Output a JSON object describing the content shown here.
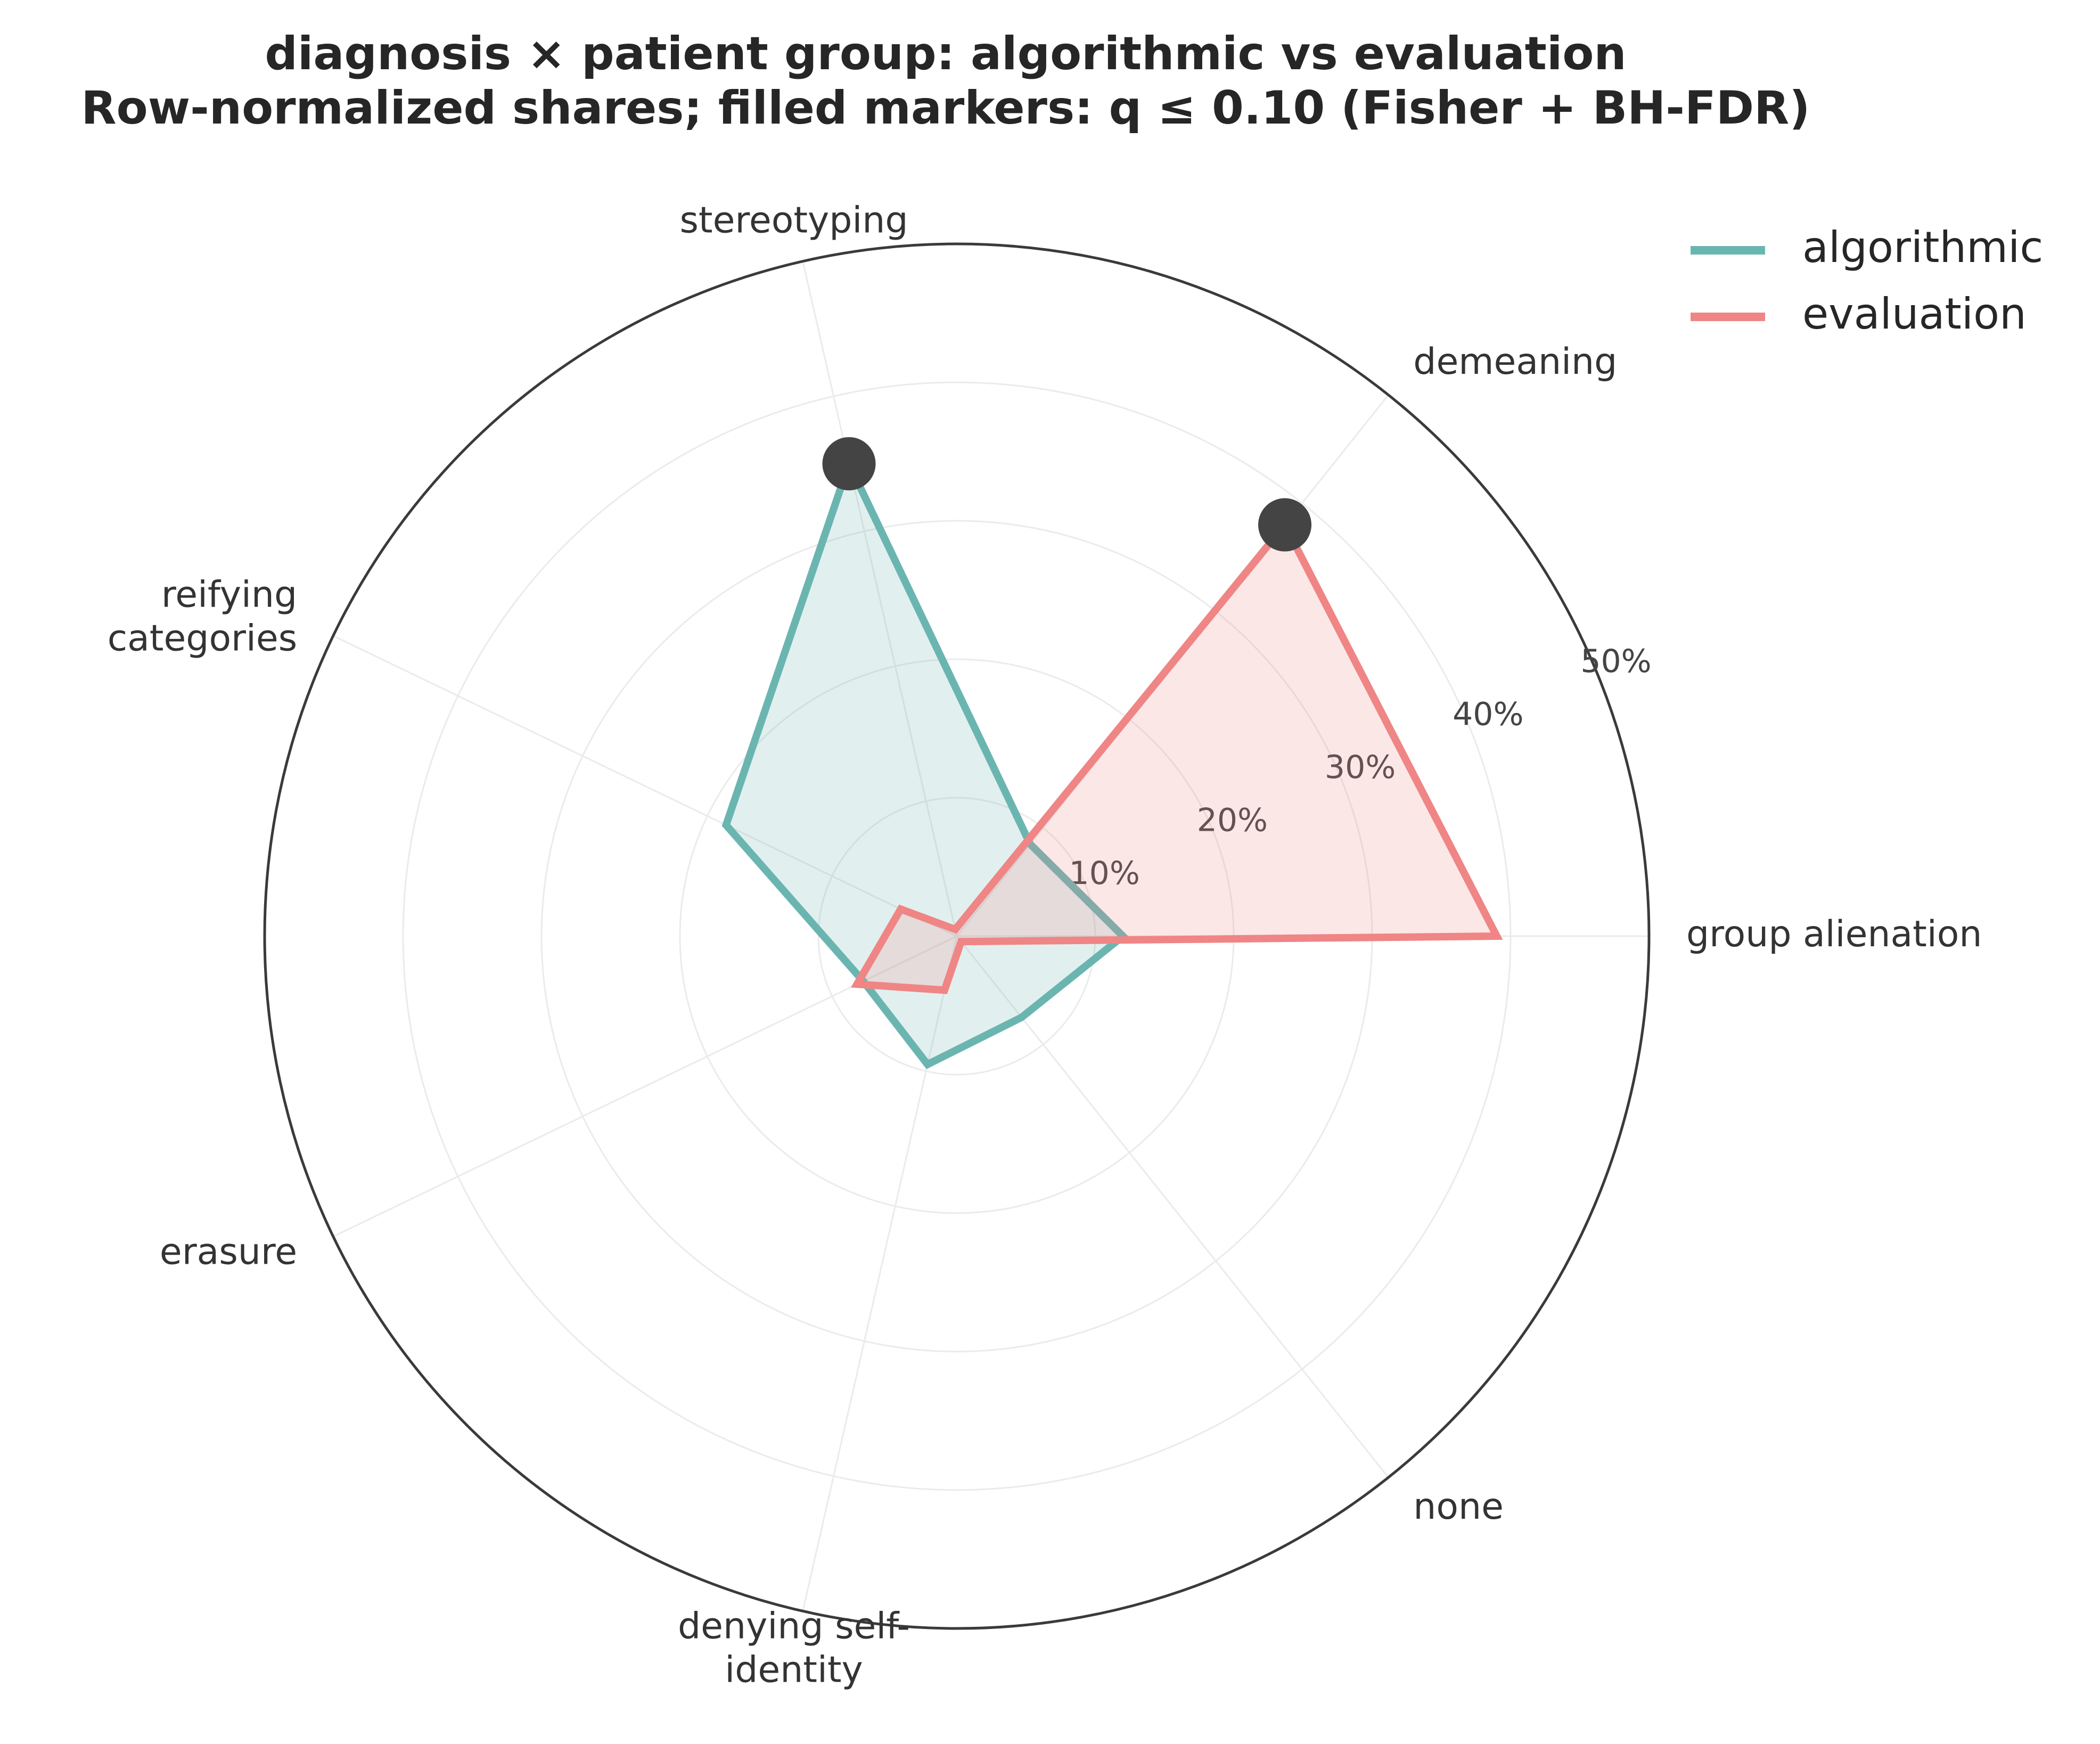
{
  "chart_data": {
    "type": "radar",
    "title": "diagnosis × patient group: algorithmic vs evaluation",
    "subtitle": "Row-normalized shares; filled markers: q ≤ 0.10 (Fisher + BH-FDR)",
    "categories": [
      "group alienation",
      "demeaning",
      "stereotyping",
      "reifying\ncategories",
      "erasure",
      "denying self-\nidentity",
      "none"
    ],
    "rlim": [
      0,
      50
    ],
    "rticks": [
      10,
      20,
      30,
      40,
      50
    ],
    "rtick_labels": [
      "10%",
      "20%",
      "30%",
      "40%",
      "50%"
    ],
    "grid": true,
    "legend_position": "upper-right",
    "series": [
      {
        "name": "algorithmic",
        "color": "#6bb5b1",
        "values": [
          12.0,
          8.5,
          35.0,
          18.5,
          7.5,
          9.5,
          7.5
        ]
      },
      {
        "name": "evaluation",
        "color": "#ef8585",
        "values": [
          39.0,
          38.0,
          0.5,
          4.5,
          8.0,
          4.0,
          0.5
        ]
      }
    ],
    "significant_markers": [
      {
        "series": "algorithmic",
        "category": "stereotyping",
        "value": 35.0,
        "color": "#444444"
      },
      {
        "series": "evaluation",
        "category": "demeaning",
        "value": 38.0,
        "color": "#444444"
      }
    ]
  }
}
